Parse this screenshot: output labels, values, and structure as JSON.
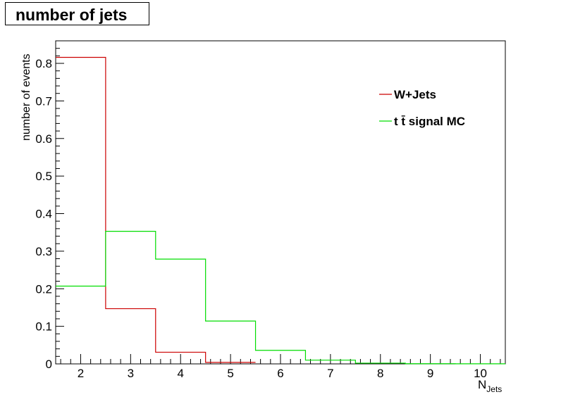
{
  "chart_data": {
    "type": "step histogram",
    "title": "number of jets",
    "ylabel": "number of events",
    "xlabel": {
      "main": "N",
      "sub": "Jets"
    },
    "xlim": [
      1.5,
      10.5
    ],
    "ylim": [
      0,
      0.86
    ],
    "x_ticks": [
      "2",
      "3",
      "4",
      "5",
      "6",
      "7",
      "8",
      "9",
      "10"
    ],
    "y_ticks": [
      "0",
      "0.1",
      "0.2",
      "0.3",
      "0.4",
      "0.5",
      "0.6",
      "0.7",
      "0.8"
    ],
    "bin_edges": [
      1.5,
      2.5,
      3.5,
      4.5,
      5.5,
      6.5,
      7.5,
      8.5,
      9.5,
      10.5
    ],
    "legend_position": "top-right",
    "series": [
      {
        "name": "W+Jets",
        "color": "#cc0000",
        "bin_edges": [
          1.5,
          2.5,
          3.5,
          4.5,
          5.5
        ],
        "values": [
          0.816,
          0.147,
          0.031,
          0.004
        ]
      },
      {
        "name": "t  t̄ signal MC",
        "color": "#00dd00",
        "bin_edges": [
          1.5,
          2.5,
          3.5,
          4.5,
          5.5,
          6.5,
          7.5,
          8.5,
          9.5,
          10.5
        ],
        "values": [
          0.207,
          0.353,
          0.279,
          0.114,
          0.036,
          0.01,
          0.002,
          0.0005,
          0.0002
        ]
      }
    ]
  }
}
